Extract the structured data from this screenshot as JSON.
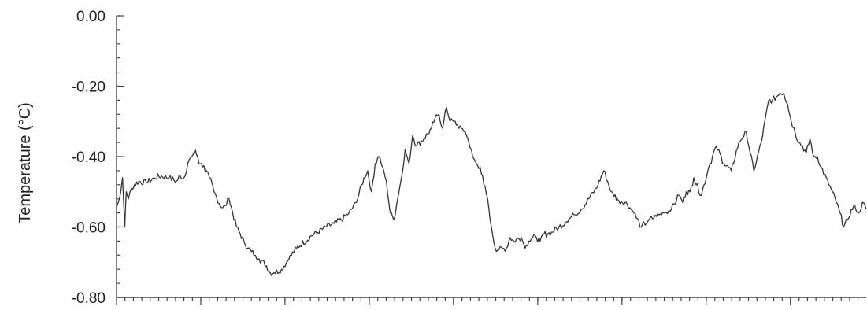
{
  "chart_data": {
    "type": "line",
    "title": "",
    "xlabel": "",
    "ylabel": "Temperature (°C)",
    "ylim": [
      -0.8,
      0.0
    ],
    "xlim": [
      0,
      1
    ],
    "y_ticks": [
      0.0,
      -0.2,
      -0.4,
      -0.6,
      -0.8
    ],
    "y_tick_labels": [
      "0.00",
      "-0.20",
      "-0.40",
      "-0.60",
      "-0.80"
    ],
    "y_minor_step": 0.04,
    "x_major_ticks": [
      0,
      0.1124,
      0.2247,
      0.3371,
      0.4494,
      0.5618,
      0.6742,
      0.7865,
      0.8989
    ],
    "x_minor_step": 0.01124,
    "grid": false,
    "legend": "none",
    "line_color": "#333333",
    "series": [
      {
        "x": [
          0,
          0.004,
          0.008,
          0.011,
          0.013,
          0.016,
          0.02,
          0.024,
          0.03,
          0.04,
          0.05,
          0.06,
          0.07,
          0.08,
          0.085,
          0.09,
          0.095,
          0.1,
          0.105,
          0.11,
          0.113,
          0.12,
          0.124,
          0.13,
          0.14,
          0.145,
          0.15,
          0.16,
          0.165,
          0.17,
          0.175,
          0.18,
          0.185,
          0.19,
          0.2,
          0.205,
          0.21,
          0.22,
          0.23,
          0.24,
          0.26,
          0.28,
          0.29,
          0.3,
          0.31,
          0.32,
          0.33,
          0.335,
          0.34,
          0.345,
          0.35,
          0.355,
          0.36,
          0.365,
          0.37,
          0.375,
          0.38,
          0.385,
          0.39,
          0.395,
          0.4,
          0.41,
          0.42,
          0.425,
          0.43,
          0.435,
          0.44,
          0.445,
          0.45,
          0.455,
          0.46,
          0.465,
          0.47,
          0.475,
          0.48,
          0.485,
          0.49,
          0.495,
          0.5,
          0.505,
          0.51,
          0.52,
          0.525,
          0.53,
          0.54,
          0.545,
          0.55,
          0.555,
          0.56,
          0.565,
          0.57,
          0.575,
          0.58,
          0.59,
          0.6,
          0.61,
          0.62,
          0.63,
          0.64,
          0.65,
          0.66,
          0.67,
          0.68,
          0.69,
          0.7,
          0.71,
          0.72,
          0.73,
          0.74,
          0.75,
          0.755,
          0.76,
          0.765,
          0.77,
          0.78,
          0.79,
          0.8,
          0.81,
          0.82,
          0.83,
          0.84,
          0.85,
          0.86,
          0.87,
          0.875,
          0.88,
          0.885,
          0.89,
          0.895,
          0.9,
          0.905,
          0.91,
          0.915,
          0.92,
          0.925,
          0.93,
          0.935,
          0.94,
          0.95,
          0.955,
          0.96,
          0.965,
          0.97,
          0.975,
          0.98,
          0.985,
          0.99,
          0.995,
          1.0
        ],
        "y": [
          -0.545,
          -0.52,
          -0.46,
          -0.6,
          -0.5,
          -0.52,
          -0.49,
          -0.48,
          -0.47,
          -0.475,
          -0.46,
          -0.455,
          -0.46,
          -0.47,
          -0.455,
          -0.46,
          -0.42,
          -0.4,
          -0.38,
          -0.42,
          -0.42,
          -0.44,
          -0.46,
          -0.5,
          -0.545,
          -0.54,
          -0.52,
          -0.6,
          -0.62,
          -0.64,
          -0.66,
          -0.67,
          -0.68,
          -0.69,
          -0.71,
          -0.73,
          -0.73,
          -0.72,
          -0.69,
          -0.66,
          -0.625,
          -0.6,
          -0.59,
          -0.58,
          -0.56,
          -0.53,
          -0.46,
          -0.44,
          -0.5,
          -0.42,
          -0.4,
          -0.43,
          -0.47,
          -0.56,
          -0.58,
          -0.52,
          -0.46,
          -0.38,
          -0.42,
          -0.34,
          -0.37,
          -0.35,
          -0.32,
          -0.29,
          -0.28,
          -0.32,
          -0.26,
          -0.3,
          -0.3,
          -0.31,
          -0.32,
          -0.33,
          -0.36,
          -0.4,
          -0.42,
          -0.43,
          -0.48,
          -0.52,
          -0.6,
          -0.66,
          -0.665,
          -0.66,
          -0.63,
          -0.64,
          -0.63,
          -0.66,
          -0.64,
          -0.63,
          -0.63,
          -0.64,
          -0.62,
          -0.62,
          -0.615,
          -0.6,
          -0.585,
          -0.565,
          -0.55,
          -0.52,
          -0.49,
          -0.44,
          -0.5,
          -0.525,
          -0.53,
          -0.56,
          -0.6,
          -0.58,
          -0.57,
          -0.56,
          -0.55,
          -0.51,
          -0.53,
          -0.5,
          -0.5,
          -0.46,
          -0.51,
          -0.43,
          -0.37,
          -0.42,
          -0.44,
          -0.36,
          -0.33,
          -0.44,
          -0.36,
          -0.24,
          -0.24,
          -0.23,
          -0.22,
          -0.22,
          -0.25,
          -0.3,
          -0.33,
          -0.36,
          -0.37,
          -0.39,
          -0.35,
          -0.4,
          -0.4,
          -0.43,
          -0.48,
          -0.5,
          -0.53,
          -0.56,
          -0.6,
          -0.58,
          -0.55,
          -0.54,
          -0.56,
          -0.53,
          -0.55
        ]
      }
    ]
  }
}
